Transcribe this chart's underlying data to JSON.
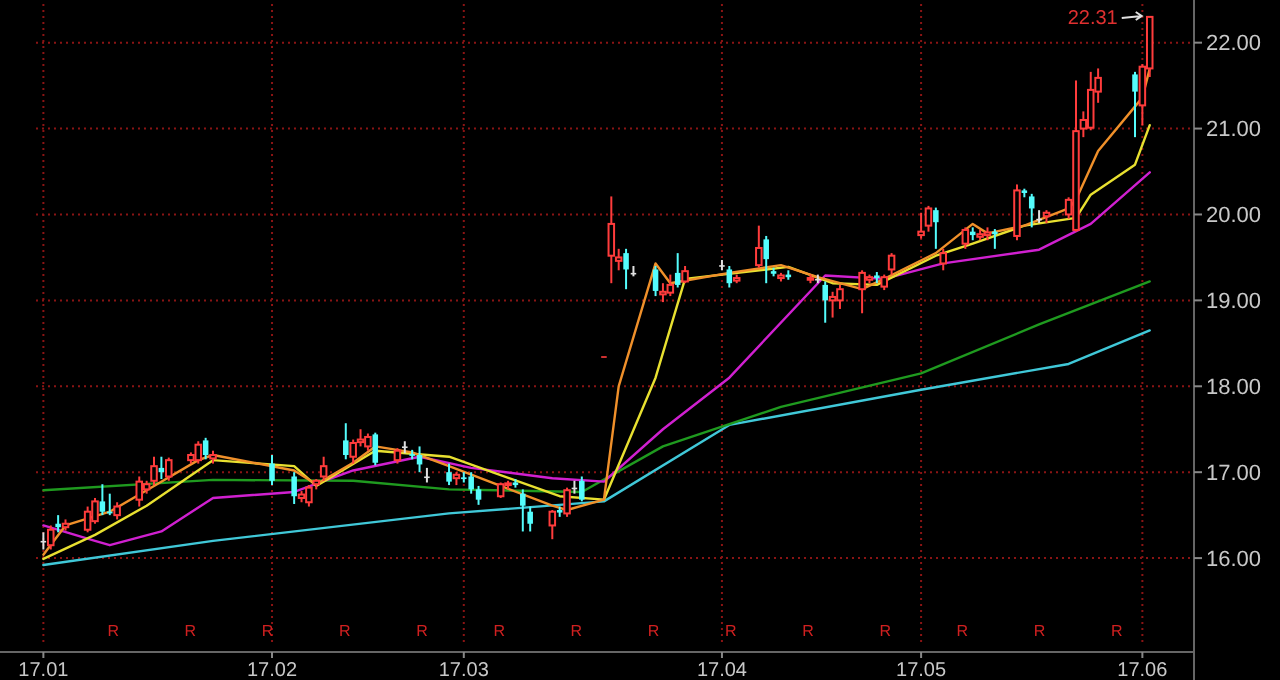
{
  "chart_data": {
    "type": "candlestick",
    "x": [
      "--01-03",
      "--01-04",
      "--01-05",
      "--01-06",
      "--01-09",
      "--01-10",
      "--01-11",
      "--01-12",
      "--01-13",
      "--01-16",
      "--01-17",
      "--01-18",
      "--01-19",
      "--01-20",
      "--01-23",
      "--01-24",
      "--01-25",
      "--01-26",
      "--02-03",
      "--02-06",
      "--02-07",
      "--02-08",
      "--02-09",
      "--02-10",
      "--02-13",
      "--02-14",
      "--02-15",
      "--02-16",
      "--02-17",
      "--02-20",
      "--02-21",
      "--02-22",
      "--02-23",
      "--02-24",
      "--02-27",
      "--02-28",
      "--03-01",
      "--03-02",
      "--03-03",
      "--03-06",
      "--03-07",
      "--03-08",
      "--03-09",
      "--03-10",
      "--03-13",
      "--03-14",
      "--03-15",
      "--03-16",
      "--03-17",
      "--03-20",
      "--03-21",
      "--03-22",
      "--03-23",
      "--03-24",
      "--03-27",
      "--03-28",
      "--03-29",
      "--03-30",
      "--03-31",
      "--04-05",
      "--04-06",
      "--04-07",
      "--04-10",
      "--04-11",
      "--04-12",
      "--04-13",
      "--04-14",
      "--04-17",
      "--04-18",
      "--04-19",
      "--04-20",
      "--04-21",
      "--04-24",
      "--04-25",
      "--04-26",
      "--04-27",
      "--04-28",
      "--05-02",
      "--05-03",
      "--05-04",
      "--05-05",
      "--05-08",
      "--05-09",
      "--05-10",
      "--05-11",
      "--05-12",
      "--05-15",
      "--05-16",
      "--05-17",
      "--05-18",
      "--05-19",
      "--05-22",
      "--05-23",
      "--05-24",
      "--05-25",
      "--05-26",
      "--05-31",
      "--06-01",
      "--06-02"
    ],
    "ohlc": [
      [
        16.2,
        16.3,
        16.1,
        16.2
      ],
      [
        16.15,
        16.38,
        16.1,
        16.33
      ],
      [
        16.4,
        16.5,
        16.3,
        16.36
      ],
      [
        16.36,
        16.45,
        16.32,
        16.4
      ],
      [
        16.33,
        16.6,
        16.3,
        16.54
      ],
      [
        16.43,
        16.7,
        16.4,
        16.66
      ],
      [
        16.66,
        16.86,
        16.5,
        16.54
      ],
      [
        16.54,
        16.75,
        16.5,
        16.52
      ],
      [
        16.5,
        16.65,
        16.45,
        16.6
      ],
      [
        16.68,
        16.95,
        16.6,
        16.89
      ],
      [
        16.8,
        16.9,
        16.75,
        16.86
      ],
      [
        16.9,
        17.18,
        16.85,
        17.07
      ],
      [
        17.05,
        17.18,
        16.92,
        17.0
      ],
      [
        16.95,
        17.17,
        16.9,
        17.14
      ],
      [
        17.14,
        17.23,
        17.1,
        17.2
      ],
      [
        17.14,
        17.36,
        17.1,
        17.32
      ],
      [
        17.37,
        17.4,
        17.15,
        17.2
      ],
      [
        17.16,
        17.25,
        17.1,
        17.2
      ],
      [
        17.1,
        17.2,
        16.85,
        16.9
      ],
      [
        16.95,
        17.0,
        16.63,
        16.72
      ],
      [
        16.7,
        16.78,
        16.65,
        16.74
      ],
      [
        16.65,
        16.85,
        16.6,
        16.82
      ],
      [
        16.86,
        16.92,
        16.8,
        16.9
      ],
      [
        16.95,
        17.18,
        16.9,
        17.07
      ],
      [
        17.37,
        17.57,
        17.15,
        17.2
      ],
      [
        17.18,
        17.38,
        17.1,
        17.34
      ],
      [
        17.35,
        17.5,
        17.3,
        17.38
      ],
      [
        17.3,
        17.45,
        17.25,
        17.41
      ],
      [
        17.44,
        17.46,
        17.08,
        17.11
      ],
      [
        17.14,
        17.28,
        17.1,
        17.25
      ],
      [
        17.3,
        17.36,
        17.22,
        17.29
      ],
      [
        17.21,
        17.26,
        17.15,
        17.19
      ],
      [
        17.2,
        17.3,
        17.0,
        17.09
      ],
      [
        16.95,
        17.05,
        16.88,
        16.95
      ],
      [
        17.0,
        17.1,
        16.85,
        16.89
      ],
      [
        16.93,
        17.0,
        16.85,
        16.97
      ],
      [
        16.94,
        17.0,
        16.88,
        16.92
      ],
      [
        16.95,
        17.0,
        16.75,
        16.8
      ],
      [
        16.8,
        16.84,
        16.62,
        16.68
      ],
      [
        16.72,
        16.88,
        16.7,
        16.86
      ],
      [
        16.85,
        16.9,
        16.8,
        16.87
      ],
      [
        16.88,
        16.92,
        16.82,
        16.85
      ],
      [
        16.75,
        16.8,
        16.31,
        16.61
      ],
      [
        16.54,
        16.6,
        16.31,
        16.4
      ],
      [
        16.38,
        16.56,
        16.22,
        16.54
      ],
      [
        16.56,
        16.6,
        16.48,
        16.53
      ],
      [
        16.52,
        16.82,
        16.48,
        16.79
      ],
      [
        16.82,
        16.9,
        16.75,
        16.82
      ],
      [
        16.9,
        16.95,
        16.66,
        16.68
      ],
      [
        18.35,
        18.35,
        18.35,
        18.35
      ],
      [
        19.52,
        20.21,
        19.2,
        19.89
      ],
      [
        19.46,
        19.6,
        19.35,
        19.5
      ],
      [
        19.55,
        19.6,
        19.13,
        19.36
      ],
      [
        19.32,
        19.4,
        19.28,
        19.32
      ],
      [
        19.36,
        19.4,
        19.05,
        19.11
      ],
      [
        19.07,
        19.2,
        18.98,
        19.1
      ],
      [
        19.09,
        19.3,
        19.05,
        19.18
      ],
      [
        19.32,
        19.55,
        19.15,
        19.18
      ],
      [
        19.22,
        19.4,
        19.2,
        19.34
      ],
      [
        19.41,
        19.47,
        19.35,
        19.41
      ],
      [
        19.36,
        19.4,
        19.15,
        19.2
      ],
      [
        19.23,
        19.3,
        19.2,
        19.26
      ],
      [
        19.41,
        19.87,
        19.38,
        19.61
      ],
      [
        19.71,
        19.75,
        19.2,
        19.48
      ],
      [
        19.34,
        19.38,
        19.28,
        19.31
      ],
      [
        19.26,
        19.32,
        19.22,
        19.29
      ],
      [
        19.3,
        19.35,
        19.24,
        19.27
      ],
      [
        19.24,
        19.3,
        19.2,
        19.26
      ],
      [
        19.25,
        19.3,
        19.2,
        19.25
      ],
      [
        19.18,
        19.22,
        18.74,
        19.0
      ],
      [
        19.0,
        19.1,
        18.8,
        19.04
      ],
      [
        19.0,
        19.18,
        18.9,
        19.13
      ],
      [
        19.13,
        19.35,
        18.85,
        19.32
      ],
      [
        19.24,
        19.3,
        19.2,
        19.27
      ],
      [
        19.29,
        19.33,
        19.2,
        19.26
      ],
      [
        19.16,
        19.3,
        19.12,
        19.27
      ],
      [
        19.36,
        19.55,
        19.3,
        19.52
      ],
      [
        19.76,
        20.02,
        19.72,
        19.8
      ],
      [
        19.87,
        20.1,
        19.8,
        20.07
      ],
      [
        20.05,
        20.08,
        19.6,
        19.91
      ],
      [
        19.43,
        19.6,
        19.35,
        19.55
      ],
      [
        19.66,
        19.85,
        19.6,
        19.82
      ],
      [
        19.8,
        19.85,
        19.7,
        19.76
      ],
      [
        19.74,
        19.82,
        19.7,
        19.77
      ],
      [
        19.76,
        19.85,
        19.7,
        19.79
      ],
      [
        19.8,
        19.83,
        19.6,
        19.77
      ],
      [
        19.75,
        20.35,
        19.7,
        20.28
      ],
      [
        20.28,
        20.3,
        20.2,
        20.25
      ],
      [
        20.21,
        20.24,
        19.85,
        20.07
      ],
      [
        19.95,
        20.05,
        19.9,
        19.94
      ],
      [
        19.98,
        20.05,
        19.9,
        20.02
      ],
      [
        20.0,
        20.2,
        19.95,
        20.17
      ],
      [
        19.82,
        21.56,
        19.8,
        20.97
      ],
      [
        21.0,
        21.2,
        20.9,
        21.1
      ],
      [
        21.01,
        21.66,
        20.98,
        21.45
      ],
      [
        21.43,
        21.7,
        21.3,
        21.59
      ],
      [
        21.63,
        21.66,
        20.9,
        21.43
      ],
      [
        21.27,
        21.75,
        21.04,
        21.72
      ],
      [
        21.7,
        22.31,
        21.6,
        22.3
      ]
    ],
    "colors": [
      "#e0e0e0",
      "#ff3c3c",
      "#54fcfc",
      "#ff3c3c",
      "#ff3c3c",
      "#ff3c3c",
      "#54fcfc",
      "#54fcfc",
      "#ff3c3c",
      "#ff3c3c",
      "#ff3c3c",
      "#ff3c3c",
      "#54fcfc",
      "#ff3c3c",
      "#ff3c3c",
      "#ff3c3c",
      "#54fcfc",
      "#ff3c3c",
      "#54fcfc",
      "#54fcfc",
      "#ff3c3c",
      "#ff3c3c",
      "#ff3c3c",
      "#ff3c3c",
      "#54fcfc",
      "#ff3c3c",
      "#ff3c3c",
      "#ff3c3c",
      "#54fcfc",
      "#ff3c3c",
      "#e0e0e0",
      "#54fcfc",
      "#54fcfc",
      "#e0e0e0",
      "#54fcfc",
      "#ff3c3c",
      "#54fcfc",
      "#54fcfc",
      "#54fcfc",
      "#ff3c3c",
      "#ff3c3c",
      "#54fcfc",
      "#54fcfc",
      "#54fcfc",
      "#ff3c3c",
      "#54fcfc",
      "#ff3c3c",
      "#e0e0e0",
      "#54fcfc",
      "#ff3c3c",
      "#ff3c3c",
      "#ff3c3c",
      "#54fcfc",
      "#e0e0e0",
      "#54fcfc",
      "#ff3c3c",
      "#ff3c3c",
      "#54fcfc",
      "#ff3c3c",
      "#e0e0e0",
      "#54fcfc",
      "#ff3c3c",
      "#ff3c3c",
      "#54fcfc",
      "#54fcfc",
      "#ff3c3c",
      "#54fcfc",
      "#ff3c3c",
      "#e0e0e0",
      "#54fcfc",
      "#ff3c3c",
      "#ff3c3c",
      "#ff3c3c",
      "#ff3c3c",
      "#54fcfc",
      "#ff3c3c",
      "#ff3c3c",
      "#ff3c3c",
      "#ff3c3c",
      "#54fcfc",
      "#ff3c3c",
      "#ff3c3c",
      "#54fcfc",
      "#ff3c3c",
      "#ff3c3c",
      "#54fcfc",
      "#ff3c3c",
      "#54fcfc",
      "#54fcfc",
      "#e0e0e0",
      "#ff3c3c",
      "#ff3c3c",
      "#ff3c3c",
      "#ff3c3c",
      "#ff3c3c",
      "#ff3c3c",
      "#54fcfc",
      "#ff3c3c",
      "#ff3c3c"
    ],
    "series": [
      {
        "type": "line",
        "color": "#40c8d8",
        "x": [
          "--01-03",
          "--01-26",
          "--02-27",
          "--03-20",
          "--04-06",
          "--05-02",
          "--05-22",
          "--06-02"
        ],
        "values": [
          15.92,
          16.2,
          16.52,
          16.66,
          17.55,
          17.96,
          18.26,
          18.65
        ]
      },
      {
        "type": "line",
        "color": "#1f9a1f",
        "x": [
          "--01-03",
          "--01-26",
          "--02-14",
          "--02-27",
          "--03-17",
          "--03-28",
          "--04-13",
          "--05-02",
          "--05-18",
          "--06-02"
        ],
        "values": [
          16.79,
          16.91,
          16.9,
          16.8,
          16.77,
          17.3,
          17.76,
          18.15,
          18.72,
          19.22
        ]
      },
      {
        "type": "line",
        "color": "#d020d0",
        "x": [
          "--01-03",
          "--01-10",
          "--01-12",
          "--01-19",
          "--01-26",
          "--02-06",
          "--02-14",
          "--02-23",
          "--03-02",
          "--03-13",
          "--03-20",
          "--03-28",
          "--04-06",
          "--04-19",
          "--04-27",
          "--05-05",
          "--05-18",
          "--05-25",
          "--06-02"
        ],
        "values": [
          16.38,
          16.2,
          16.15,
          16.31,
          16.7,
          16.77,
          17.02,
          17.18,
          17.05,
          16.93,
          16.89,
          17.5,
          18.1,
          19.29,
          19.25,
          19.43,
          19.59,
          19.89,
          20.49
        ]
      },
      {
        "type": "line",
        "color": "#e8e030",
        "x": [
          "--01-03",
          "--01-10",
          "--01-17",
          "--01-26",
          "--02-06",
          "--02-09",
          "--02-17",
          "--02-27",
          "--03-14",
          "--03-20",
          "--03-27",
          "--03-31",
          "--04-14",
          "--04-20",
          "--04-26",
          "--05-04",
          "--05-09",
          "--05-16",
          "--05-23",
          "--05-25",
          "--05-31",
          "--06-02"
        ],
        "values": [
          15.99,
          16.27,
          16.61,
          17.14,
          17.07,
          16.84,
          17.25,
          17.18,
          16.72,
          16.68,
          18.1,
          19.25,
          19.39,
          19.2,
          19.18,
          19.52,
          19.66,
          19.87,
          19.96,
          20.23,
          20.58,
          21.04
        ]
      },
      {
        "type": "line",
        "color": "#f0902a",
        "x": [
          "--01-03",
          "--01-06",
          "--01-12",
          "--01-18",
          "--01-24",
          "--01-26",
          "--02-06",
          "--02-09",
          "--02-14",
          "--02-17",
          "--02-22",
          "--02-27",
          "--03-06",
          "--03-13",
          "--03-15",
          "--03-20",
          "--03-22",
          "--03-27",
          "--03-29",
          "--04-06",
          "--04-13",
          "--04-18",
          "--04-24",
          "--04-27",
          "--05-04",
          "--05-09",
          "--05-11",
          "--05-16",
          "--05-22",
          "--05-23",
          "--05-26",
          "--06-01",
          "--06-02"
        ],
        "values": [
          16.04,
          16.38,
          16.54,
          16.84,
          17.14,
          17.2,
          17.02,
          16.86,
          17.11,
          17.3,
          17.23,
          17.07,
          16.84,
          16.61,
          16.56,
          16.68,
          18.0,
          19.43,
          19.2,
          19.32,
          19.41,
          19.27,
          19.13,
          19.25,
          19.55,
          19.89,
          19.78,
          19.87,
          20.07,
          20.17,
          20.74,
          21.36,
          21.7
        ]
      }
    ],
    "xlim": [
      "--01-02",
      "--06-08"
    ],
    "xticks": [
      {
        "value": "--01-03",
        "label": "17.01"
      },
      {
        "value": "--02-03",
        "label": "17.02"
      },
      {
        "value": "--03-01",
        "label": "17.03"
      },
      {
        "value": "--04-05",
        "label": "17.04"
      },
      {
        "value": "--05-02",
        "label": "17.05"
      },
      {
        "value": "--06-01",
        "label": "17.06"
      }
    ],
    "ylim": [
      15.0,
      22.45
    ],
    "yticks": [
      {
        "value": 16,
        "label": "16.00"
      },
      {
        "value": 17,
        "label": "17.00"
      },
      {
        "value": 18,
        "label": "18.00"
      },
      {
        "value": 19,
        "label": "19.00"
      },
      {
        "value": 20,
        "label": "20.00"
      },
      {
        "value": 21,
        "label": "21.00"
      },
      {
        "value": 22,
        "label": "22.00"
      }
    ],
    "grid": true,
    "annotations": [
      {
        "text": "22.31",
        "x": "--06-02",
        "y": 22.31
      },
      "R",
      "R",
      "R",
      "R",
      "R",
      "R",
      "R",
      "R",
      "R",
      "R",
      "R",
      "R",
      "R",
      "R"
    ]
  }
}
